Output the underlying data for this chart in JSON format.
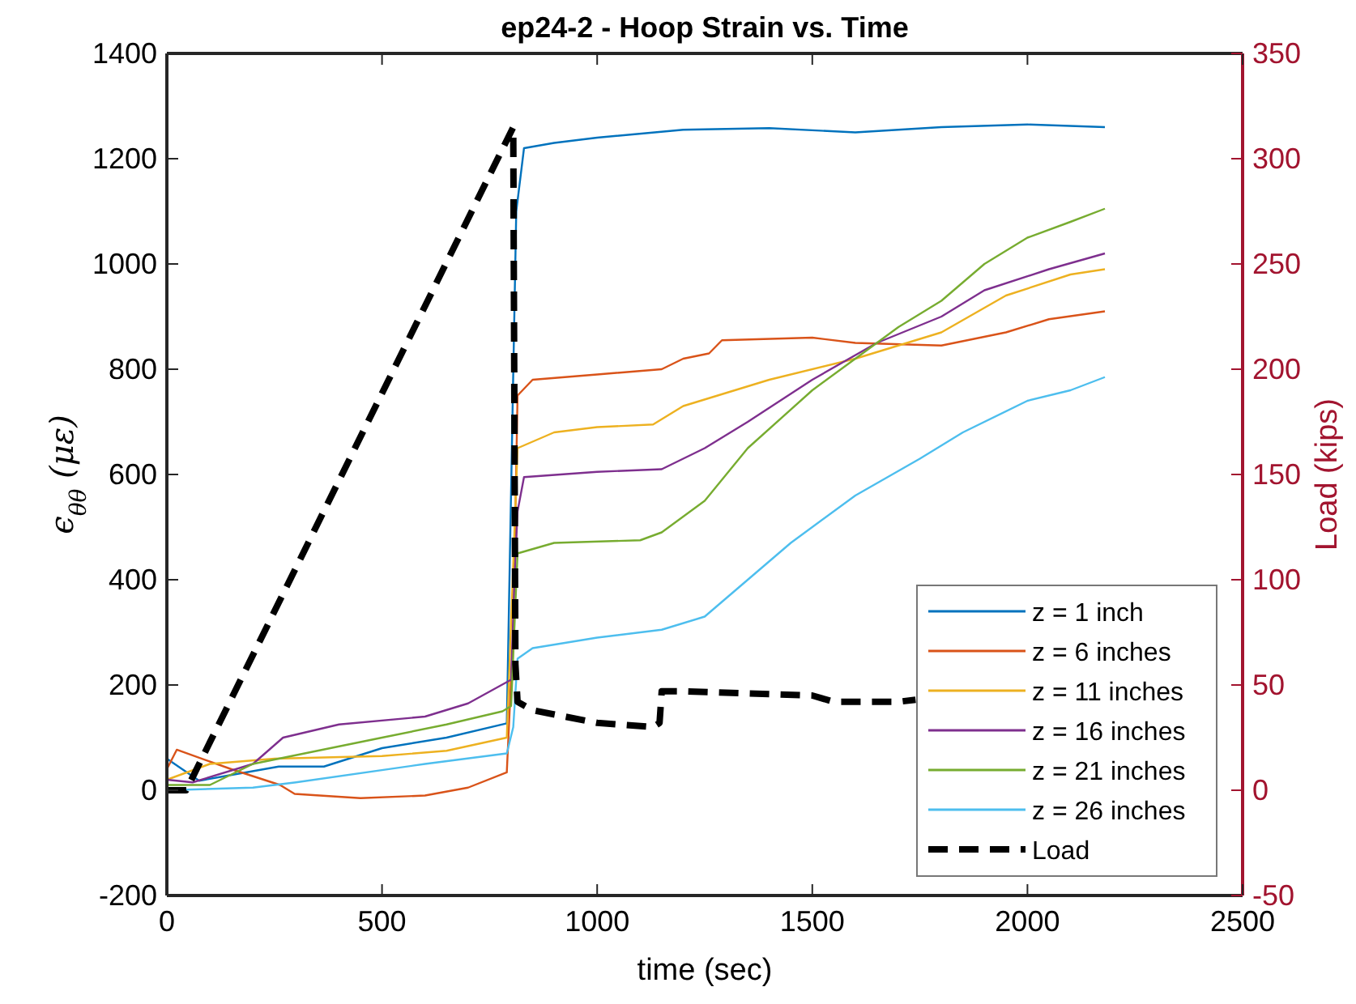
{
  "chart_data": {
    "type": "line",
    "title": "ep24-2 - Hoop Strain vs. Time",
    "xlabel": "time (sec)",
    "ylabel": "ϵ$_{θθ}$ (με)",
    "y2label": "Load (kips)",
    "xlim": [
      0,
      2500
    ],
    "xticks": [
      0,
      500,
      1000,
      1500,
      2000,
      2500
    ],
    "ylim": [
      -200,
      1400
    ],
    "yticks": [
      -200,
      0,
      200,
      400,
      600,
      800,
      1000,
      1200,
      1400
    ],
    "y2lim": [
      -50,
      350
    ],
    "y2ticks": [
      -50,
      0,
      50,
      100,
      150,
      200,
      250,
      300,
      350
    ],
    "grid": false,
    "legend": "bottom right",
    "series": [
      {
        "name": "z = 1 inch",
        "color": "#0072bd",
        "x": [
          0,
          75,
          260,
          365,
          500,
          650,
          790,
          812,
          830,
          900,
          1000,
          1200,
          1400,
          1600,
          1800,
          2000,
          2180
        ],
        "values": [
          60,
          18,
          45,
          45,
          80,
          100,
          127,
          1100,
          1220,
          1230,
          1240,
          1255,
          1258,
          1250,
          1260,
          1265,
          1260
        ]
      },
      {
        "name": "z = 6 inches",
        "color": "#d95319",
        "x": [
          0,
          23,
          150,
          263,
          297,
          450,
          600,
          700,
          790,
          805,
          815,
          850,
          1000,
          1150,
          1200,
          1260,
          1290,
          1500,
          1600,
          1800,
          1950,
          2050,
          2180
        ],
        "values": [
          40,
          77,
          40,
          10,
          -7,
          -15,
          -10,
          5,
          34,
          300,
          750,
          780,
          790,
          800,
          820,
          830,
          855,
          860,
          850,
          845,
          870,
          895,
          910
        ]
      },
      {
        "name": "z = 11 inches",
        "color": "#edb120",
        "x": [
          0,
          100,
          250,
          500,
          650,
          790,
          815,
          900,
          1000,
          1130,
          1200,
          1400,
          1600,
          1800,
          1950,
          2100,
          2180
        ],
        "values": [
          20,
          50,
          60,
          65,
          75,
          100,
          650,
          680,
          690,
          695,
          730,
          780,
          820,
          870,
          940,
          980,
          990
        ]
      },
      {
        "name": "z = 16 inches",
        "color": "#7e2f8e",
        "x": [
          0,
          60,
          200,
          270,
          400,
          600,
          700,
          800,
          808,
          815,
          830,
          1000,
          1150,
          1250,
          1350,
          1500,
          1650,
          1800,
          1900,
          2050,
          2180
        ],
        "values": [
          20,
          15,
          50,
          100,
          125,
          140,
          165,
          210,
          400,
          530,
          595,
          605,
          610,
          650,
          700,
          780,
          850,
          900,
          950,
          990,
          1020
        ]
      },
      {
        "name": "z = 21 inches",
        "color": "#77ac30",
        "x": [
          0,
          100,
          200,
          350,
          500,
          650,
          780,
          800,
          815,
          900,
          1100,
          1150,
          1250,
          1350,
          1500,
          1600,
          1700,
          1800,
          1900,
          2000,
          2100,
          2180
        ],
        "values": [
          10,
          10,
          50,
          75,
          100,
          125,
          150,
          160,
          450,
          470,
          475,
          490,
          550,
          650,
          760,
          820,
          880,
          930,
          1000,
          1050,
          1080,
          1105
        ]
      },
      {
        "name": "z = 26 inches",
        "color": "#4dbeee",
        "x": [
          0,
          200,
          300,
          600,
          790,
          805,
          815,
          850,
          1000,
          1150,
          1250,
          1350,
          1450,
          1600,
          1750,
          1850,
          2000,
          2100,
          2180
        ],
        "values": [
          0,
          5,
          15,
          50,
          70,
          120,
          250,
          270,
          290,
          305,
          330,
          400,
          470,
          560,
          630,
          680,
          740,
          760,
          785
        ]
      },
      {
        "name": "Load",
        "color": "#000000",
        "axis": "y2",
        "line_style": "dashed",
        "x": [
          0,
          45,
          805,
          810,
          815,
          850,
          1000,
          1130,
          1145,
          1150,
          1200,
          1500,
          1550,
          1700,
          1740
        ],
        "values": [
          0,
          0,
          315,
          60,
          42,
          38,
          32,
          30,
          32,
          47,
          47,
          45,
          42,
          42,
          43
        ]
      }
    ]
  }
}
